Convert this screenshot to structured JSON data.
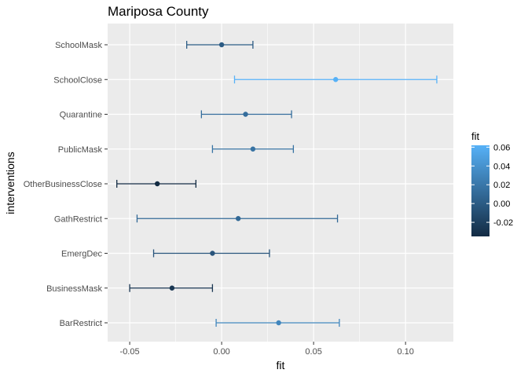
{
  "chart_data": {
    "type": "scatter",
    "title": "Mariposa County",
    "xlabel": "fit",
    "ylabel": "interventions",
    "xlim": [
      -0.062,
      0.126
    ],
    "x_ticks": [
      -0.05,
      0.0,
      0.05,
      0.1
    ],
    "x_tick_labels": [
      "-0.05",
      "0.00",
      "0.05",
      "0.10"
    ],
    "grid": true,
    "categories": [
      "SchoolMask",
      "SchoolClose",
      "Quarantine",
      "PublicMask",
      "OtherBusinessClose",
      "GathRestrict",
      "EmergDec",
      "BusinessMask",
      "BarRestrict"
    ],
    "series": [
      {
        "fit": [
          0.0,
          0.062,
          0.013,
          0.017,
          -0.035,
          0.009,
          -0.005,
          -0.027,
          0.031
        ],
        "lower": [
          -0.019,
          0.007,
          -0.011,
          -0.005,
          -0.057,
          -0.046,
          -0.037,
          -0.05,
          -0.003
        ],
        "upper": [
          0.017,
          0.117,
          0.038,
          0.039,
          -0.014,
          0.063,
          0.026,
          -0.005,
          0.064
        ]
      }
    ],
    "legend": {
      "title": "fit",
      "position": "right",
      "range": [
        -0.035,
        0.062
      ],
      "tick_values": [
        0.06,
        0.04,
        0.02,
        0.0,
        -0.02
      ],
      "tick_labels": [
        "0.06",
        "0.04",
        "0.02",
        "0.00",
        "-0.02"
      ],
      "low_color": "#132B43",
      "high_color": "#56B1F7"
    },
    "panel_background": "#EBEBEB",
    "grid_color": "#FFFFFF"
  }
}
